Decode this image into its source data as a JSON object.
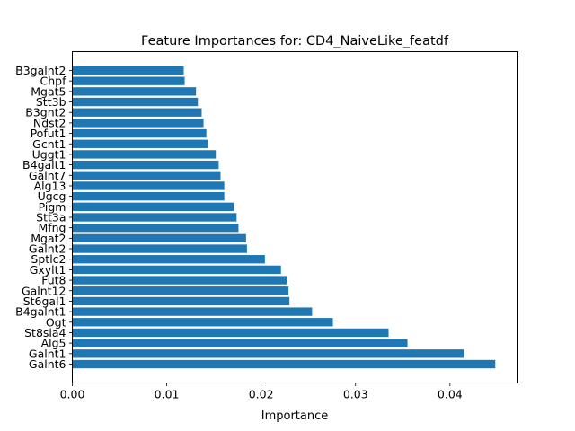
{
  "chart_data": {
    "type": "bar",
    "orientation": "horizontal",
    "title": "Feature Importances for: CD4_NaiveLike_featdf",
    "xlabel": "Importance",
    "ylabel": "",
    "xlim": [
      0,
      0.0472
    ],
    "xticks": [
      0.0,
      0.01,
      0.02,
      0.03,
      0.04
    ],
    "xtick_labels": [
      "0.00",
      "0.01",
      "0.02",
      "0.03",
      "0.04"
    ],
    "grid": false,
    "bar_color": "#1f77b4",
    "categories": [
      "Galnt6",
      "Galnt1",
      "Alg5",
      "St8sia4",
      "Ogt",
      "B4galnt1",
      "St6gal1",
      "Galnt12",
      "Fut8",
      "Gxylt1",
      "Sptlc2",
      "Galnt2",
      "Mgat2",
      "Mfng",
      "Stt3a",
      "Pigm",
      "Ugcg",
      "Alg13",
      "Galnt7",
      "B4galt1",
      "Uggt1",
      "Gcnt1",
      "Pofut1",
      "Ndst2",
      "B3gnt2",
      "Stt3b",
      "Mgat5",
      "Chpf",
      "B3galnt2"
    ],
    "values": [
      0.0448,
      0.0415,
      0.0355,
      0.0335,
      0.0276,
      0.0254,
      0.023,
      0.0229,
      0.0227,
      0.0221,
      0.0204,
      0.0185,
      0.0184,
      0.0176,
      0.0174,
      0.0171,
      0.0161,
      0.0161,
      0.0157,
      0.0155,
      0.0152,
      0.0144,
      0.0142,
      0.0139,
      0.0137,
      0.0133,
      0.0131,
      0.0119,
      0.0118
    ]
  }
}
